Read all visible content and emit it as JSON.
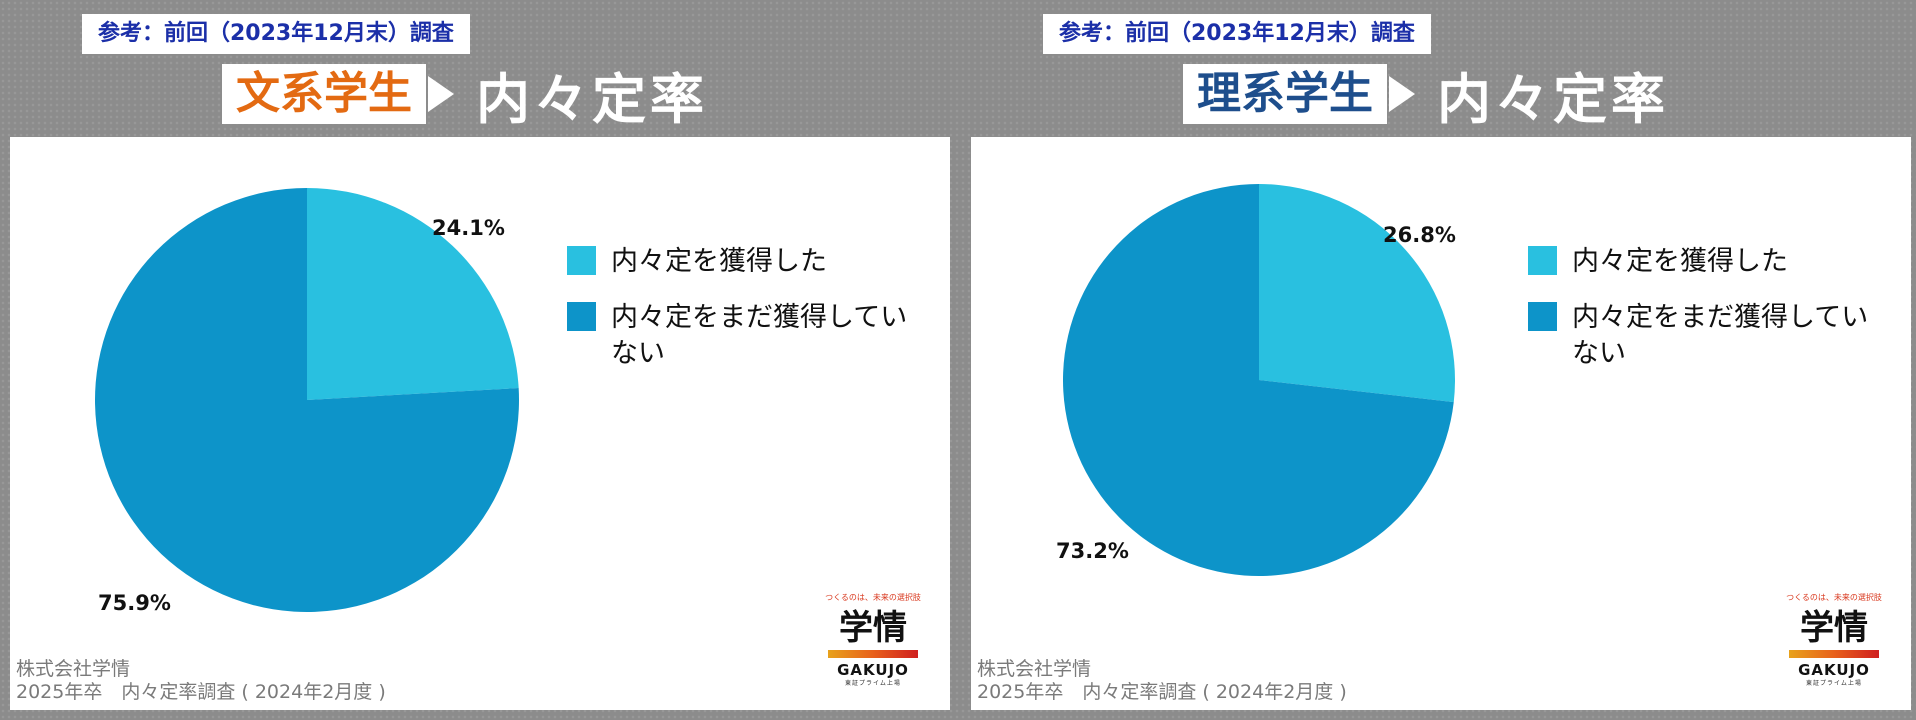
{
  "colors": {
    "acquired": "#29c0e0",
    "not_acquired": "#0d94c9",
    "bunkei_accent": "#e36a12",
    "rikei_accent": "#1e4e8c",
    "ref_text": "#1b2fa8"
  },
  "panels": [
    {
      "ref_label": "参考：前回（2023年12月末）調査",
      "title_tag": "文系学生",
      "title_main": "内々定率",
      "footer_company": "株式会社学情",
      "footer_survey": "2025年卒　内々定率調査 ( 2024年2月度 )",
      "logo": {
        "tagline": "つくるのは、未来の選択肢",
        "mark": "学情",
        "name": "GAKUJO",
        "sub": "東証プライム上場"
      }
    },
    {
      "ref_label": "参考：前回（2023年12月末）調査",
      "title_tag": "理系学生",
      "title_main": "内々定率",
      "footer_company": "株式会社学情",
      "footer_survey": "2025年卒　内々定率調査 ( 2024年2月度 )",
      "logo": {
        "tagline": "つくるのは、未来の選択肢",
        "mark": "学情",
        "name": "GAKUJO",
        "sub": "東証プライム上場"
      }
    }
  ],
  "chart_data": [
    {
      "type": "pie",
      "title": "",
      "categories": [
        "内々定を獲得した",
        "内々定をまだ獲得していない"
      ],
      "values": [
        24.1,
        75.9
      ],
      "labels": [
        "24.1%",
        "75.9%"
      ],
      "legend_position": "right"
    },
    {
      "type": "pie",
      "title": "",
      "categories": [
        "内々定を獲得した",
        "内々定をまだ獲得していない"
      ],
      "values": [
        26.8,
        73.2
      ],
      "labels": [
        "26.8%",
        "73.2%"
      ],
      "legend_position": "right"
    }
  ]
}
